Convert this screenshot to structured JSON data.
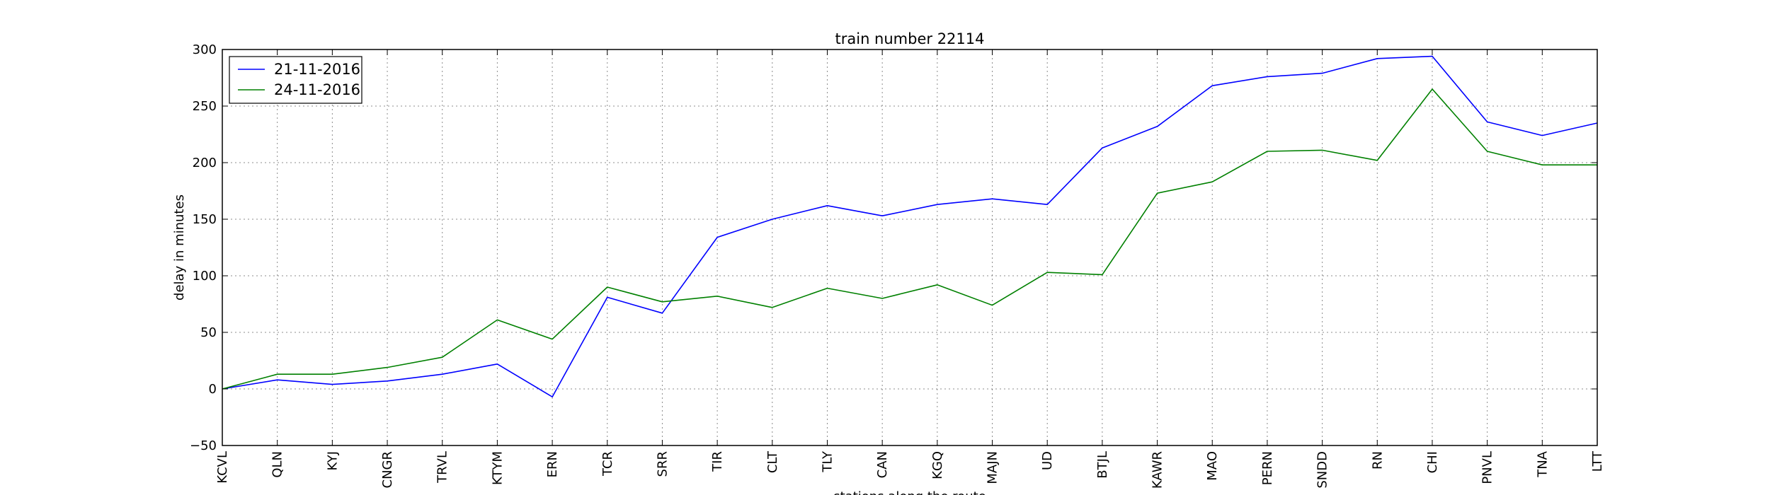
{
  "chart_data": {
    "type": "line",
    "title": "train number 22114",
    "xlabel": "stations along the route",
    "ylabel": "delay in minutes",
    "ylim": [
      -50,
      300
    ],
    "yticks": [
      -50,
      0,
      50,
      100,
      150,
      200,
      250,
      300
    ],
    "grid": true,
    "legend_position": "top-left",
    "categories": [
      "KCVL",
      "QLN",
      "KYJ",
      "CNGR",
      "TRVL",
      "KTYM",
      "ERN",
      "TCR",
      "SRR",
      "TIR",
      "CLT",
      "TLY",
      "CAN",
      "KGQ",
      "MAJN",
      "UD",
      "BTJL",
      "KAWR",
      "MAO",
      "PERN",
      "SNDD",
      "RN",
      "CHI",
      "PNVL",
      "TNA",
      "LTT"
    ],
    "series": [
      {
        "name": "21-11-2016",
        "color": "#0000ff",
        "values": [
          0,
          8,
          4,
          7,
          13,
          22,
          -7,
          81,
          67,
          134,
          150,
          162,
          153,
          163,
          168,
          163,
          213,
          232,
          268,
          276,
          279,
          292,
          294,
          236,
          224,
          235
        ]
      },
      {
        "name": "24-11-2016",
        "color": "#008000",
        "values": [
          0,
          13,
          13,
          19,
          28,
          61,
          44,
          90,
          77,
          82,
          72,
          89,
          80,
          92,
          74,
          103,
          101,
          173,
          183,
          210,
          211,
          202,
          265,
          210,
          198,
          198
        ]
      }
    ]
  }
}
